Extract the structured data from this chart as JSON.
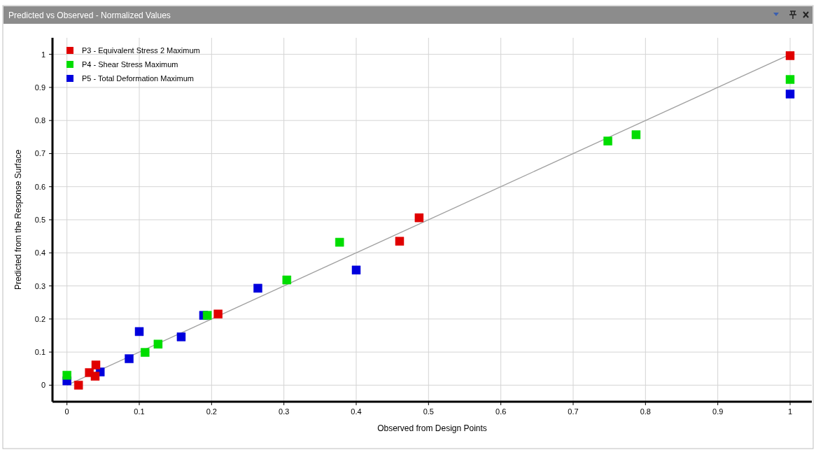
{
  "chart_data": {
    "type": "scatter",
    "title": "Predicted vs Observed - Normalized Values",
    "xlabel": "Observed from Design Points",
    "ylabel": "Predicted from the Response Surface",
    "xlim": [
      -0.02,
      1.03
    ],
    "ylim": [
      -0.05,
      1.05
    ],
    "xticks": [
      0,
      0.1,
      0.2,
      0.3,
      0.4,
      0.5,
      0.6,
      0.7,
      0.8,
      0.9,
      1
    ],
    "yticks": [
      0,
      0.1,
      0.2,
      0.3,
      0.4,
      0.5,
      0.6,
      0.7,
      0.8,
      0.9,
      1
    ],
    "grid": true,
    "legend": "top left",
    "marker": "square",
    "series": [
      {
        "type": "line",
        "marker": "none",
        "color": "#a0a0a0",
        "x": [
          0,
          1
        ],
        "values": [
          0,
          1
        ]
      },
      {
        "name": "P3 - Equivalent Stress 2 Maximum",
        "color": "#e00000",
        "x": [
          0.016,
          0.031,
          0.04,
          0.039,
          0.209,
          0.46,
          0.487,
          1
        ],
        "values": [
          0,
          0.038,
          0.061,
          0.027,
          0.215,
          0.435,
          0.506,
          0.996
        ]
      },
      {
        "name": "P4 - Shear Stress Maximum",
        "color": "#00dd00",
        "x": [
          0,
          0.108,
          0.126,
          0.194,
          0.304,
          0.377,
          0.748,
          0.787,
          1
        ],
        "values": [
          0.03,
          0.099,
          0.124,
          0.211,
          0.318,
          0.432,
          0.738,
          0.757,
          0.924
        ]
      },
      {
        "name": "P5 - Total Deformation Maximum",
        "color": "#0000dd",
        "x": [
          0,
          0.046,
          0.086,
          0.1,
          0.158,
          0.189,
          0.264,
          0.4,
          1
        ],
        "values": [
          0.013,
          0.04,
          0.08,
          0.162,
          0.146,
          0.211,
          0.293,
          0.348,
          0.88
        ]
      }
    ]
  }
}
